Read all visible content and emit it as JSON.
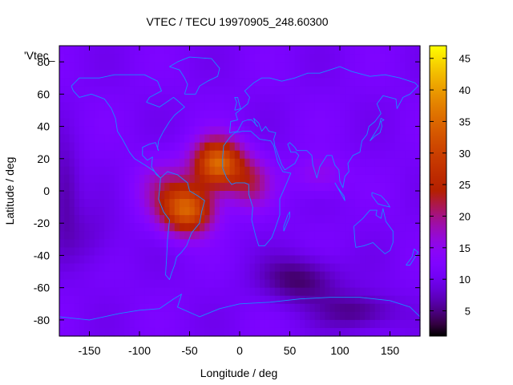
{
  "chart_data": {
    "type": "heatmap",
    "title": "VTEC / TECU 19970905_248.60300",
    "xlabel": "Longitude / deg",
    "ylabel": "Latitude / deg",
    "key_label": "'Vtec_",
    "xlim": [
      -180,
      180
    ],
    "ylim": [
      -90,
      90
    ],
    "xticks": [
      -150,
      -100,
      -50,
      0,
      50,
      100,
      150
    ],
    "yticks": [
      -80,
      -60,
      -40,
      -20,
      0,
      20,
      40,
      60,
      80
    ],
    "colorbar": {
      "range": [
        1,
        47
      ],
      "ticks": [
        5,
        10,
        15,
        20,
        25,
        30,
        35,
        40,
        45
      ]
    },
    "background_level": 11,
    "anomalies": [
      {
        "lon": -22,
        "lat": 17,
        "amp": 24,
        "slon": 24,
        "slat": 15
      },
      {
        "lon": -52,
        "lat": -12,
        "amp": 22,
        "slon": 26,
        "slat": 15
      },
      {
        "lon": -75,
        "lat": 2,
        "amp": 6,
        "slon": 30,
        "slat": 18
      },
      {
        "lon": 10,
        "lat": 5,
        "amp": 9,
        "slon": 22,
        "slat": 16
      },
      {
        "lon": 80,
        "lat": 10,
        "amp": 5,
        "slon": 25,
        "slat": 12
      },
      {
        "lon": 60,
        "lat": -55,
        "amp": -7,
        "slon": 40,
        "slat": 15
      },
      {
        "lon": 120,
        "lat": -75,
        "amp": -6,
        "slon": 40,
        "slat": 12
      },
      {
        "lon": -175,
        "lat": 0,
        "amp": -5,
        "slon": 15,
        "slat": 30
      },
      {
        "lon": -150,
        "lat": -30,
        "amp": -3,
        "slon": 30,
        "slat": 20
      }
    ]
  }
}
